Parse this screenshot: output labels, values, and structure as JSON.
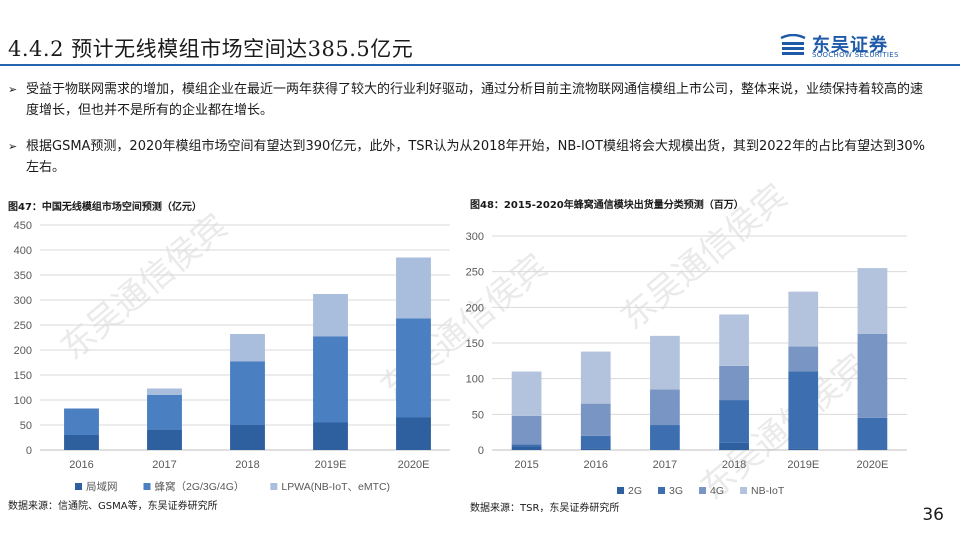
{
  "header": {
    "title": "4.4.2 预计无线模组市场空间达385.5亿元",
    "logo_cn": "东吴证券",
    "logo_en": "SOOCHOW SECURITIES"
  },
  "bullets": [
    {
      "arrow": "➢",
      "text": "受益于物联网需求的增加，模组企业在最近一两年获得了较大的行业利好驱动，通过分析目前主流物联网通信模组上市公司，整体来说，业绩保持着较高的速度增长，但也并不是所有的企业都在增长。"
    },
    {
      "arrow": "➢",
      "text": "根据GSMA预测，2020年模组市场空间有望达到390亿元，此外，TSR认为从2018年开始，NB-IOT模组将会大规模出货，其到2022年的占比有望达到30%左右。"
    }
  ],
  "chart1_title": "图47：中国无线模组市场空间预测（亿元）",
  "chart2_title": "图48：2015-2020年蜂窝通信模块出货量分类预测（百万）",
  "source1": "数据来源：信通院、GSMA等，东吴证券研究所",
  "source2": "数据来源：TSR，东吴证券研究所",
  "page_number": "36",
  "watermark": "东吴通信侯宾",
  "chart_data": [
    {
      "type": "bar",
      "stacked": true,
      "title": "图47：中国无线模组市场空间预测（亿元）",
      "categories": [
        "2016",
        "2017",
        "2018",
        "2019E",
        "2020E"
      ],
      "ylim": [
        0,
        450
      ],
      "yticks": [
        0,
        50,
        100,
        150,
        200,
        250,
        300,
        350,
        400,
        450
      ],
      "series": [
        {
          "name": "局域网",
          "color": "#2e5f9e",
          "values": [
            30,
            40,
            50,
            55,
            65
          ]
        },
        {
          "name": "蜂窝（2G/3G/4G）",
          "color": "#4a7fc1",
          "values": [
            53,
            70,
            127,
            172,
            198
          ]
        },
        {
          "name": "LPWA(NB-IoT、eMTC)",
          "color": "#a9bedd",
          "values": [
            0,
            13,
            55,
            85,
            122
          ]
        }
      ],
      "legend": "bottom"
    },
    {
      "type": "bar",
      "stacked": true,
      "title": "图48：2015-2020年蜂窝通信模块出货量分类预测（百万）",
      "categories": [
        "2015",
        "2016",
        "2017",
        "2018",
        "2019E",
        "2020E"
      ],
      "ylim": [
        0,
        300
      ],
      "yticks": [
        0,
        50,
        100,
        150,
        200,
        250,
        300
      ],
      "series": [
        {
          "name": "2G",
          "color": "#2e5f9e",
          "values": [
            5,
            2,
            0,
            10,
            2,
            0
          ]
        },
        {
          "name": "3G",
          "color": "#3d6fb0",
          "values": [
            3,
            18,
            35,
            60,
            108,
            45
          ]
        },
        {
          "name": "4G",
          "color": "#7895c4",
          "values": [
            40,
            45,
            50,
            48,
            35,
            118
          ]
        },
        {
          "name": "NB-IoT",
          "color": "#b3c3de",
          "values": [
            62,
            73,
            75,
            72,
            77,
            92
          ]
        }
      ],
      "legend": "bottom"
    }
  ]
}
